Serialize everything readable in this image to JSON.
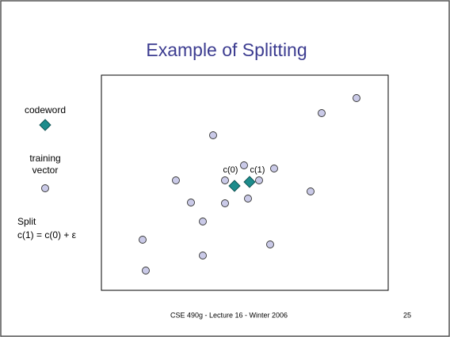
{
  "title": "Example of Splitting",
  "legend": {
    "codeword": "codeword",
    "training_vector": [
      "training",
      "vector"
    ],
    "split": "Split",
    "formula": "c(1) = c(0) + ε"
  },
  "labels": {
    "c0": "c(0)",
    "c1": "c(1)"
  },
  "footer": {
    "text": "CSE 490g - Lecture 16 - Winter 2006",
    "page": 25
  }
}
